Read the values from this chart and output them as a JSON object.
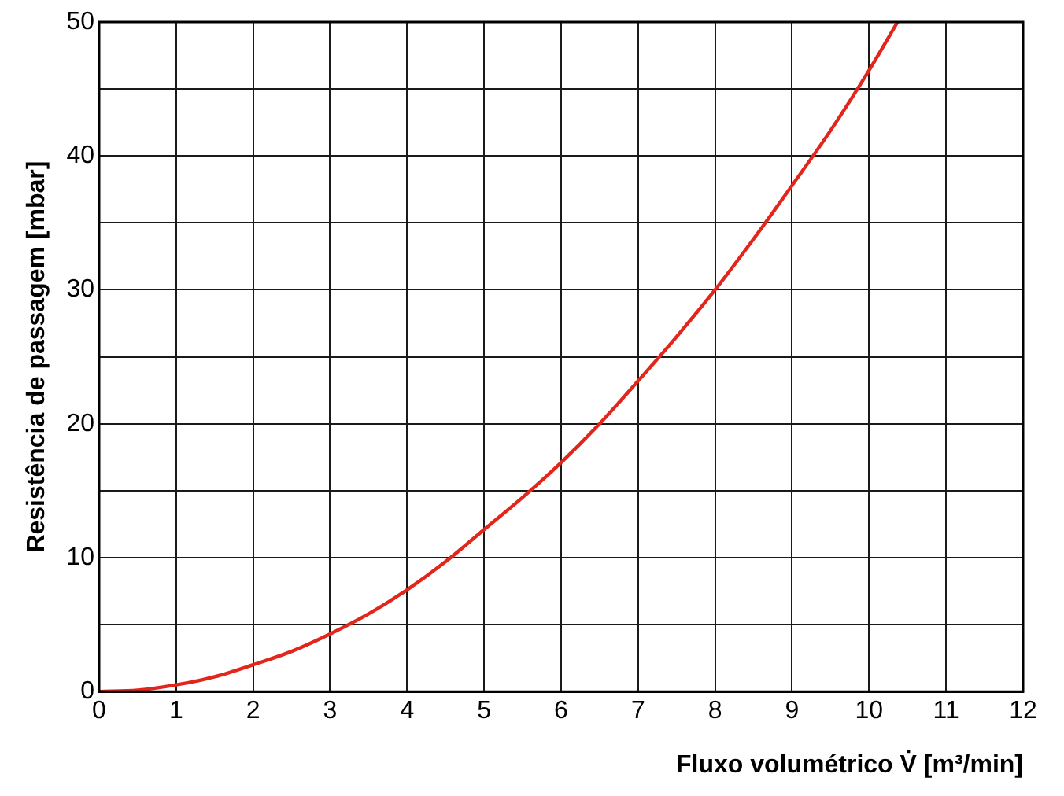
{
  "chart_data": {
    "type": "line",
    "xlabel": "Fluxo volumétrico V̇ [m³/min]",
    "ylabel": "Resistência de passagem [mbar]",
    "x": [
      0,
      0.5,
      1,
      1.5,
      2,
      2.5,
      3,
      3.5,
      4,
      4.5,
      5,
      5.5,
      6,
      6.5,
      7,
      7.5,
      8,
      8.5,
      9,
      9.5,
      10,
      10.37
    ],
    "series": [
      {
        "color": "#e3261c",
        "values": [
          0,
          0.1,
          0.5,
          1.1,
          2,
          3,
          4.3,
          5.8,
          7.6,
          9.7,
          12.1,
          14.5,
          17.1,
          20,
          23.2,
          26.5,
          30,
          33.8,
          37.8,
          41.9,
          46.4,
          50
        ]
      }
    ],
    "xlim": [
      0,
      12
    ],
    "xticks": [
      0,
      1,
      2,
      3,
      4,
      5,
      6,
      7,
      8,
      9,
      10,
      11,
      12
    ],
    "ylim": [
      0,
      50
    ],
    "yticks": [
      0,
      {
        "value": 5,
        "label": null
      },
      10,
      {
        "value": 15,
        "label": null
      },
      20,
      {
        "value": 25,
        "label": null
      },
      30,
      {
        "value": 35,
        "label": null
      },
      40,
      {
        "value": 45,
        "label": null
      },
      50
    ],
    "grid": true,
    "legend": false,
    "marker": "none",
    "line_style": "solid"
  }
}
